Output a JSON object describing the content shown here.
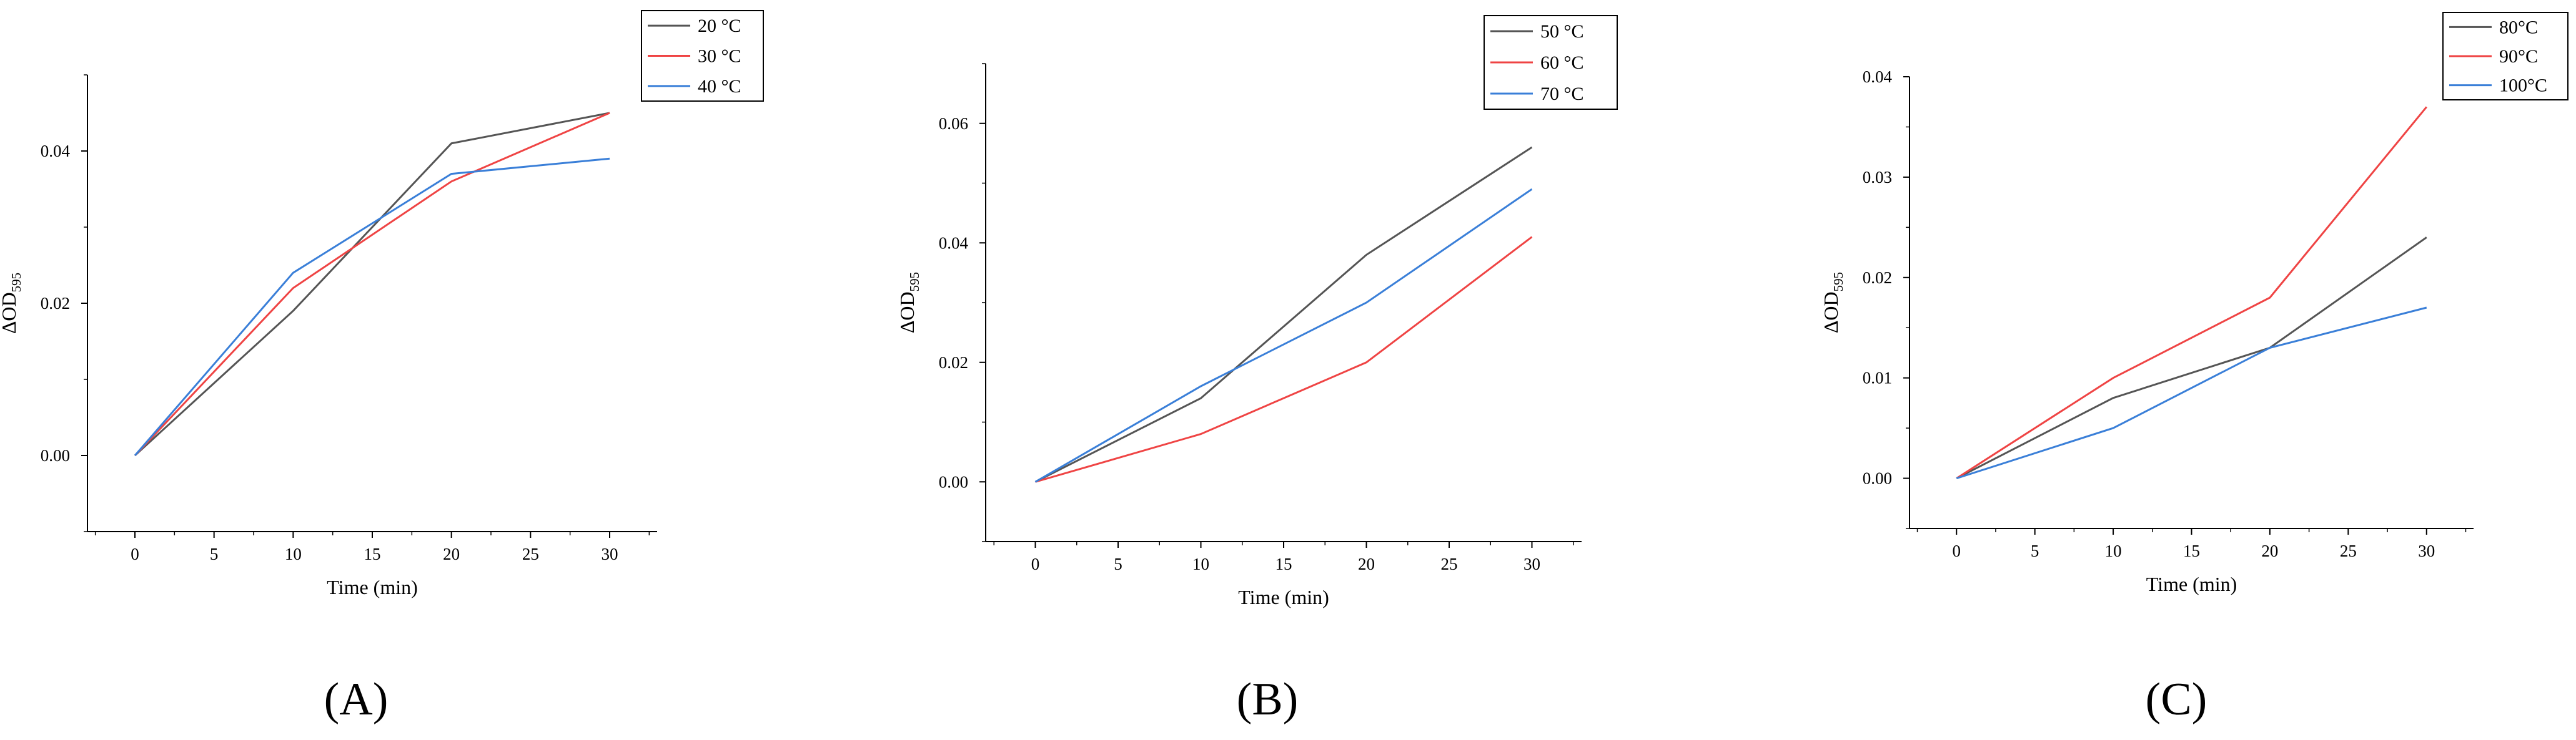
{
  "line_colors": [
    "#555555",
    "#ef4444",
    "#3a7fd8"
  ],
  "chart_data": [
    {
      "type": "line",
      "panel_label": "A",
      "xlabel": "Time (min)",
      "ylabel": "ΔOD",
      "ylabel_sub": "595",
      "x": [
        0,
        10,
        20,
        30
      ],
      "xlim": [
        -3,
        33
      ],
      "ylim": [
        -0.01,
        0.05
      ],
      "xticks": [
        0,
        5,
        10,
        15,
        20,
        25,
        30
      ],
      "yticks": [
        0.0,
        0.02,
        0.04
      ],
      "ytick_labels": [
        "0.00",
        "0.02",
        "0.04"
      ],
      "legend_position": "top-right",
      "grid": false,
      "series": [
        {
          "name": "20 °C",
          "color": "#555555",
          "values": [
            0,
            0.019,
            0.041,
            0.045
          ]
        },
        {
          "name": "30 °C",
          "color": "#ef4444",
          "values": [
            0,
            0.022,
            0.036,
            0.045
          ]
        },
        {
          "name": "40 °C",
          "color": "#3a7fd8",
          "values": [
            0,
            0.024,
            0.037,
            0.039
          ]
        }
      ]
    },
    {
      "type": "line",
      "panel_label": "B",
      "xlabel": "Time (min)",
      "ylabel": "ΔOD",
      "ylabel_sub": "595",
      "x": [
        0,
        10,
        20,
        30
      ],
      "xlim": [
        -3,
        33
      ],
      "ylim": [
        -0.01,
        0.07
      ],
      "xticks": [
        0,
        5,
        10,
        15,
        20,
        25,
        30
      ],
      "yticks": [
        0.0,
        0.02,
        0.04,
        0.06
      ],
      "ytick_labels": [
        "0.00",
        "0.02",
        "0.04",
        "0.06"
      ],
      "legend_position": "top-right",
      "grid": false,
      "series": [
        {
          "name": "50 °C",
          "color": "#555555",
          "values": [
            0,
            0.014,
            0.038,
            0.056
          ]
        },
        {
          "name": "60 °C",
          "color": "#ef4444",
          "values": [
            0,
            0.008,
            0.02,
            0.041
          ]
        },
        {
          "name": "70 °C",
          "color": "#3a7fd8",
          "values": [
            0,
            0.016,
            0.03,
            0.049
          ]
        }
      ]
    },
    {
      "type": "line",
      "panel_label": "C",
      "xlabel": "Time (min)",
      "ylabel": "ΔOD",
      "ylabel_sub": "595",
      "x": [
        0,
        10,
        20,
        30
      ],
      "xlim": [
        -3,
        33
      ],
      "ylim": [
        -0.005,
        0.04
      ],
      "xticks": [
        0,
        5,
        10,
        15,
        20,
        25,
        30
      ],
      "yticks": [
        0.0,
        0.01,
        0.02,
        0.03,
        0.04
      ],
      "ytick_labels": [
        "0.00",
        "0.01",
        "0.02",
        "0.03",
        "0.04"
      ],
      "legend_position": "top-right",
      "grid": false,
      "series": [
        {
          "name": "80°C",
          "color": "#555555",
          "values": [
            0,
            0.008,
            0.013,
            0.024
          ]
        },
        {
          "name": "90°C",
          "color": "#ef4444",
          "values": [
            0,
            0.01,
            0.018,
            0.037
          ]
        },
        {
          "name": "100°C",
          "color": "#3a7fd8",
          "values": [
            0,
            0.005,
            0.013,
            0.017
          ]
        }
      ]
    }
  ],
  "captions": [
    "(A)",
    "(B)",
    "(C)"
  ]
}
